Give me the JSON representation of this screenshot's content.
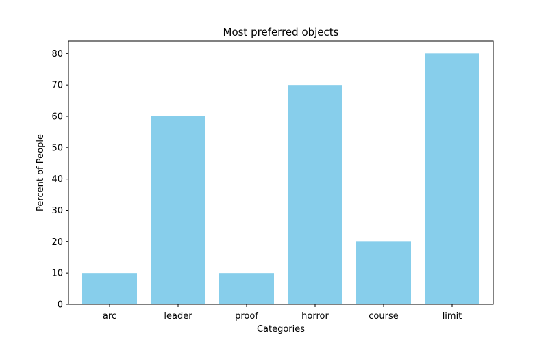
{
  "chart_data": {
    "type": "bar",
    "title": "Most preferred objects",
    "xlabel": "Categories",
    "ylabel": "Percent of People",
    "categories": [
      "arc",
      "leader",
      "proof",
      "horror",
      "course",
      "limit"
    ],
    "values": [
      10,
      60,
      10,
      70,
      20,
      80
    ],
    "ylim": [
      0,
      84
    ],
    "yticks": [
      0,
      10,
      20,
      30,
      40,
      50,
      60,
      70,
      80
    ],
    "bar_color": "#87CEEB",
    "grid": false,
    "legend": "none"
  }
}
